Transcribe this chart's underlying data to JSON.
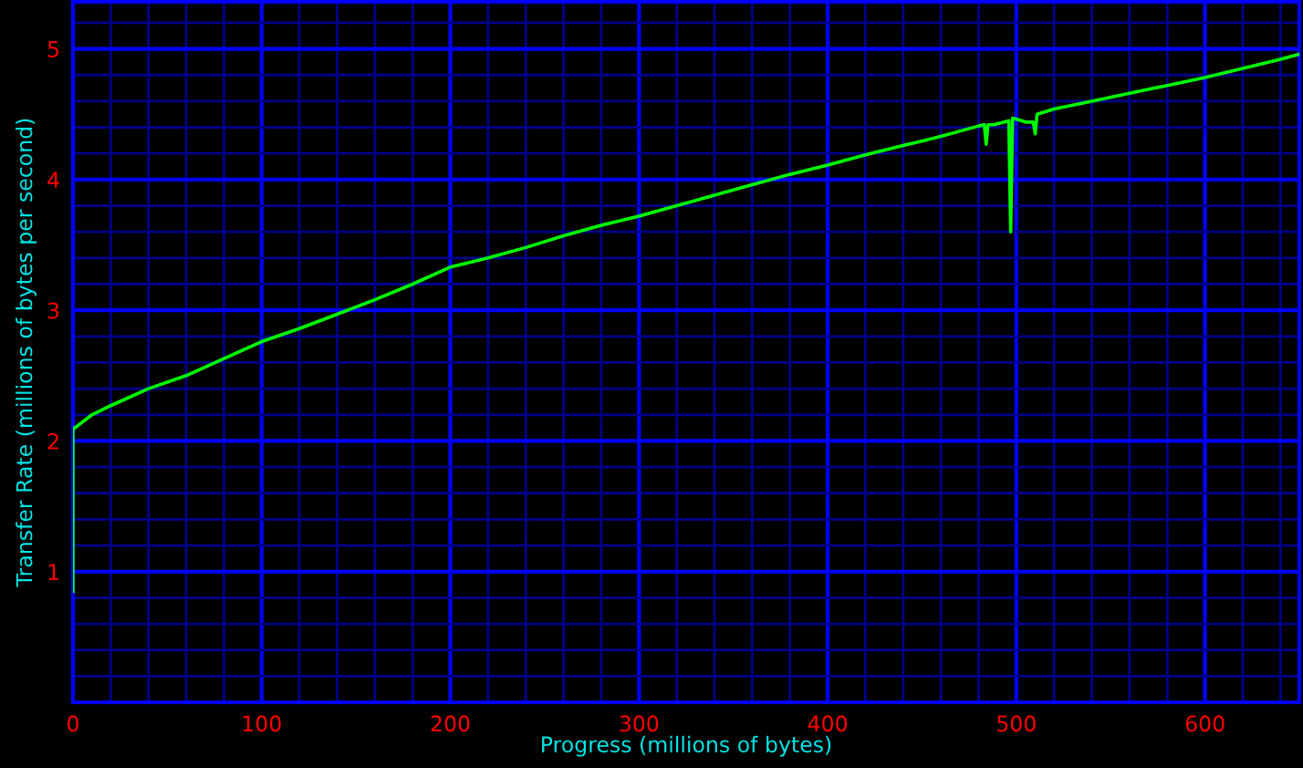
{
  "chart_data": {
    "type": "line",
    "xlabel": "Progress (millions of bytes)",
    "ylabel": "Transfer Rate (millions of bytes per second)",
    "series": [
      {
        "color": "#00ff00",
        "x": [
          0,
          0,
          1,
          10,
          20,
          40,
          60,
          80,
          100,
          120,
          140,
          160,
          180,
          200,
          220,
          240,
          260,
          280,
          300,
          320,
          340,
          360,
          380,
          400,
          420,
          440,
          460,
          480,
          483,
          484,
          485,
          488,
          496,
          497,
          498,
          505,
          509,
          510,
          511,
          520,
          540,
          560,
          580,
          600,
          620,
          640,
          650
        ],
        "values": [
          0.85,
          2.1,
          2.1,
          2.2,
          2.27,
          2.4,
          2.5,
          2.63,
          2.76,
          2.86,
          2.97,
          3.08,
          3.2,
          3.33,
          3.4,
          3.48,
          3.57,
          3.65,
          3.72,
          3.8,
          3.88,
          3.96,
          4.04,
          4.11,
          4.19,
          4.26,
          4.33,
          4.41,
          4.42,
          4.27,
          4.42,
          4.42,
          4.45,
          3.6,
          4.47,
          4.44,
          4.44,
          4.35,
          4.5,
          4.54,
          4.6,
          4.66,
          4.72,
          4.78,
          4.85,
          4.92,
          4.96
        ]
      }
    ],
    "xlim": [
      0,
      650
    ],
    "ylim": [
      0,
      5.36
    ],
    "xticks": [
      0,
      {
        "value": 20,
        "label": null
      },
      {
        "value": 40,
        "label": null
      },
      {
        "value": 60,
        "label": null
      },
      {
        "value": 80,
        "label": null
      },
      100,
      {
        "value": 120,
        "label": null
      },
      {
        "value": 140,
        "label": null
      },
      {
        "value": 160,
        "label": null
      },
      {
        "value": 180,
        "label": null
      },
      200,
      {
        "value": 220,
        "label": null
      },
      {
        "value": 240,
        "label": null
      },
      {
        "value": 260,
        "label": null
      },
      {
        "value": 280,
        "label": null
      },
      300,
      {
        "value": 320,
        "label": null
      },
      {
        "value": 340,
        "label": null
      },
      {
        "value": 360,
        "label": null
      },
      {
        "value": 380,
        "label": null
      },
      400,
      {
        "value": 420,
        "label": null
      },
      {
        "value": 440,
        "label": null
      },
      {
        "value": 460,
        "label": null
      },
      {
        "value": 480,
        "label": null
      },
      500,
      {
        "value": 520,
        "label": null
      },
      {
        "value": 540,
        "label": null
      },
      {
        "value": 560,
        "label": null
      },
      {
        "value": 580,
        "label": null
      },
      600,
      {
        "value": 620,
        "label": null
      },
      {
        "value": 640,
        "label": null
      }
    ],
    "yticks": [
      {
        "value": 0.2,
        "label": null
      },
      {
        "value": 0.4,
        "label": null
      },
      {
        "value": 0.6,
        "label": null
      },
      {
        "value": 0.8,
        "label": null
      },
      1,
      {
        "value": 1.2,
        "label": null
      },
      {
        "value": 1.4,
        "label": null
      },
      {
        "value": 1.6,
        "label": null
      },
      {
        "value": 1.8,
        "label": null
      },
      2,
      {
        "value": 2.2,
        "label": null
      },
      {
        "value": 2.4,
        "label": null
      },
      {
        "value": 2.6,
        "label": null
      },
      {
        "value": 2.8,
        "label": null
      },
      3,
      {
        "value": 3.2,
        "label": null
      },
      {
        "value": 3.4,
        "label": null
      },
      {
        "value": 3.6,
        "label": null
      },
      {
        "value": 3.8,
        "label": null
      },
      4,
      {
        "value": 4.2,
        "label": null
      },
      {
        "value": 4.4,
        "label": null
      },
      {
        "value": 4.6,
        "label": null
      },
      {
        "value": 4.8,
        "label": null
      },
      5,
      {
        "value": 5.2,
        "label": null
      }
    ],
    "grid": true,
    "legend": false,
    "marker": "none",
    "line_style": "solid"
  }
}
